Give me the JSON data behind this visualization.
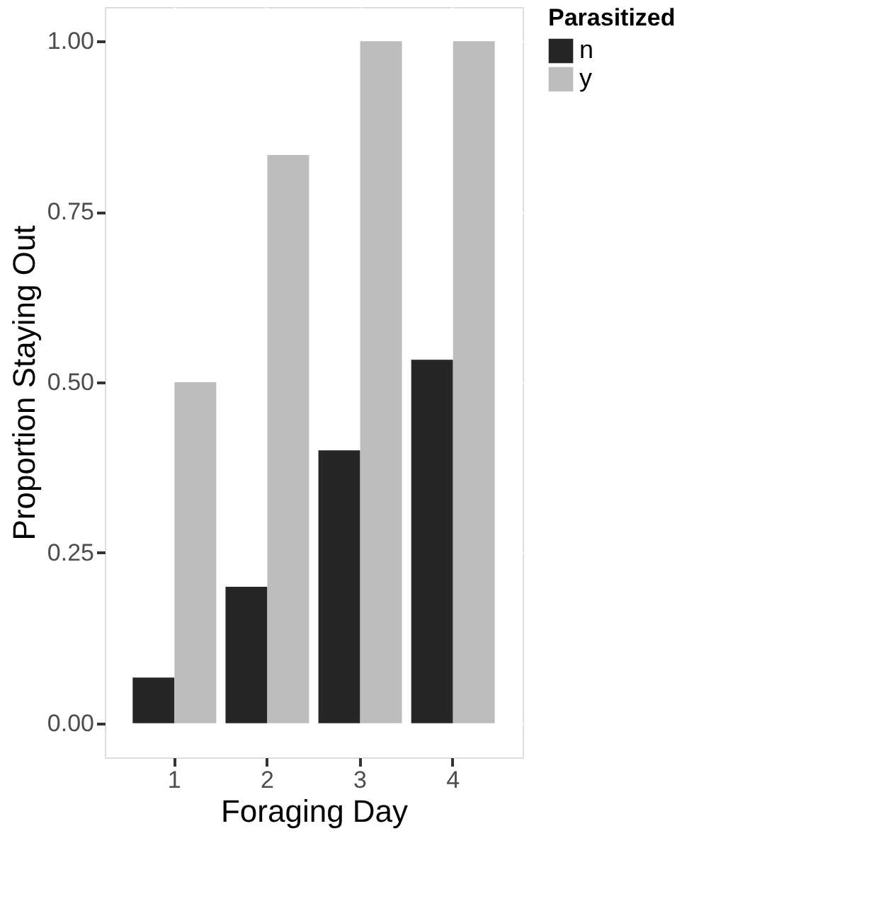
{
  "chart_data": {
    "type": "bar",
    "xlabel": "Foraging Day",
    "ylabel": "Proportion Staying Out",
    "legend_title": "Parasitized",
    "categories": [
      "1",
      "2",
      "3",
      "4"
    ],
    "series": [
      {
        "name": "n",
        "color": "#262626",
        "values": [
          0.067,
          0.2,
          0.4,
          0.533
        ]
      },
      {
        "name": "y",
        "color": "#bdbdbd",
        "values": [
          0.5,
          0.833,
          1.0,
          1.0
        ]
      }
    ],
    "ylim": [
      -0.05,
      1.05
    ],
    "yticks": [
      {
        "value": 0,
        "label": "0.00"
      },
      {
        "value": 0.25,
        "label": "0.25"
      },
      {
        "value": 0.5,
        "label": "0.50"
      },
      {
        "value": 0.75,
        "label": "0.75"
      },
      {
        "value": 1,
        "label": "1.00"
      }
    ],
    "grid": true,
    "legend": "right"
  }
}
